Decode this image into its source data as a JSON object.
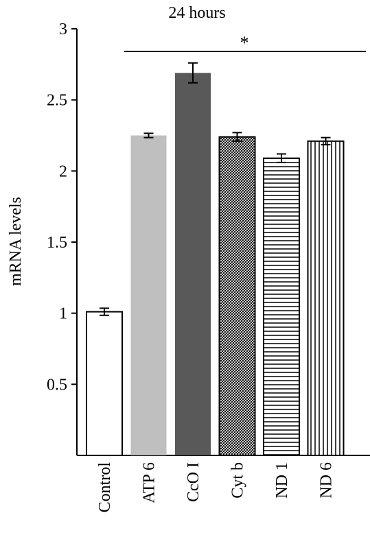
{
  "chart_data": {
    "type": "bar",
    "title": "24 hours",
    "ylabel": "mRNA levels",
    "xlabel": "",
    "ylim": [
      0,
      3
    ],
    "yticks": [
      "0.5",
      "1",
      "1.5",
      "2",
      "2.5",
      "3"
    ],
    "grid": false,
    "categories": [
      "Control",
      "ATP 6",
      "CcO I",
      "Cyt b",
      "ND 1",
      "ND 6"
    ],
    "values": [
      1.01,
      2.25,
      2.69,
      2.24,
      2.09,
      2.21
    ],
    "errors": [
      0.025,
      0.015,
      0.07,
      0.03,
      0.03,
      0.025
    ],
    "fills": [
      "white",
      "light-gray",
      "dark-gray",
      "crosshatch",
      "horizontal-lines",
      "vertical-lines"
    ],
    "colors": {
      "light_gray": "#bfbfbf",
      "dark_gray": "#595959",
      "outline": "#000000"
    },
    "significance": {
      "label": "*",
      "from_category": "ATP 6",
      "to_category": "ND 6"
    }
  }
}
